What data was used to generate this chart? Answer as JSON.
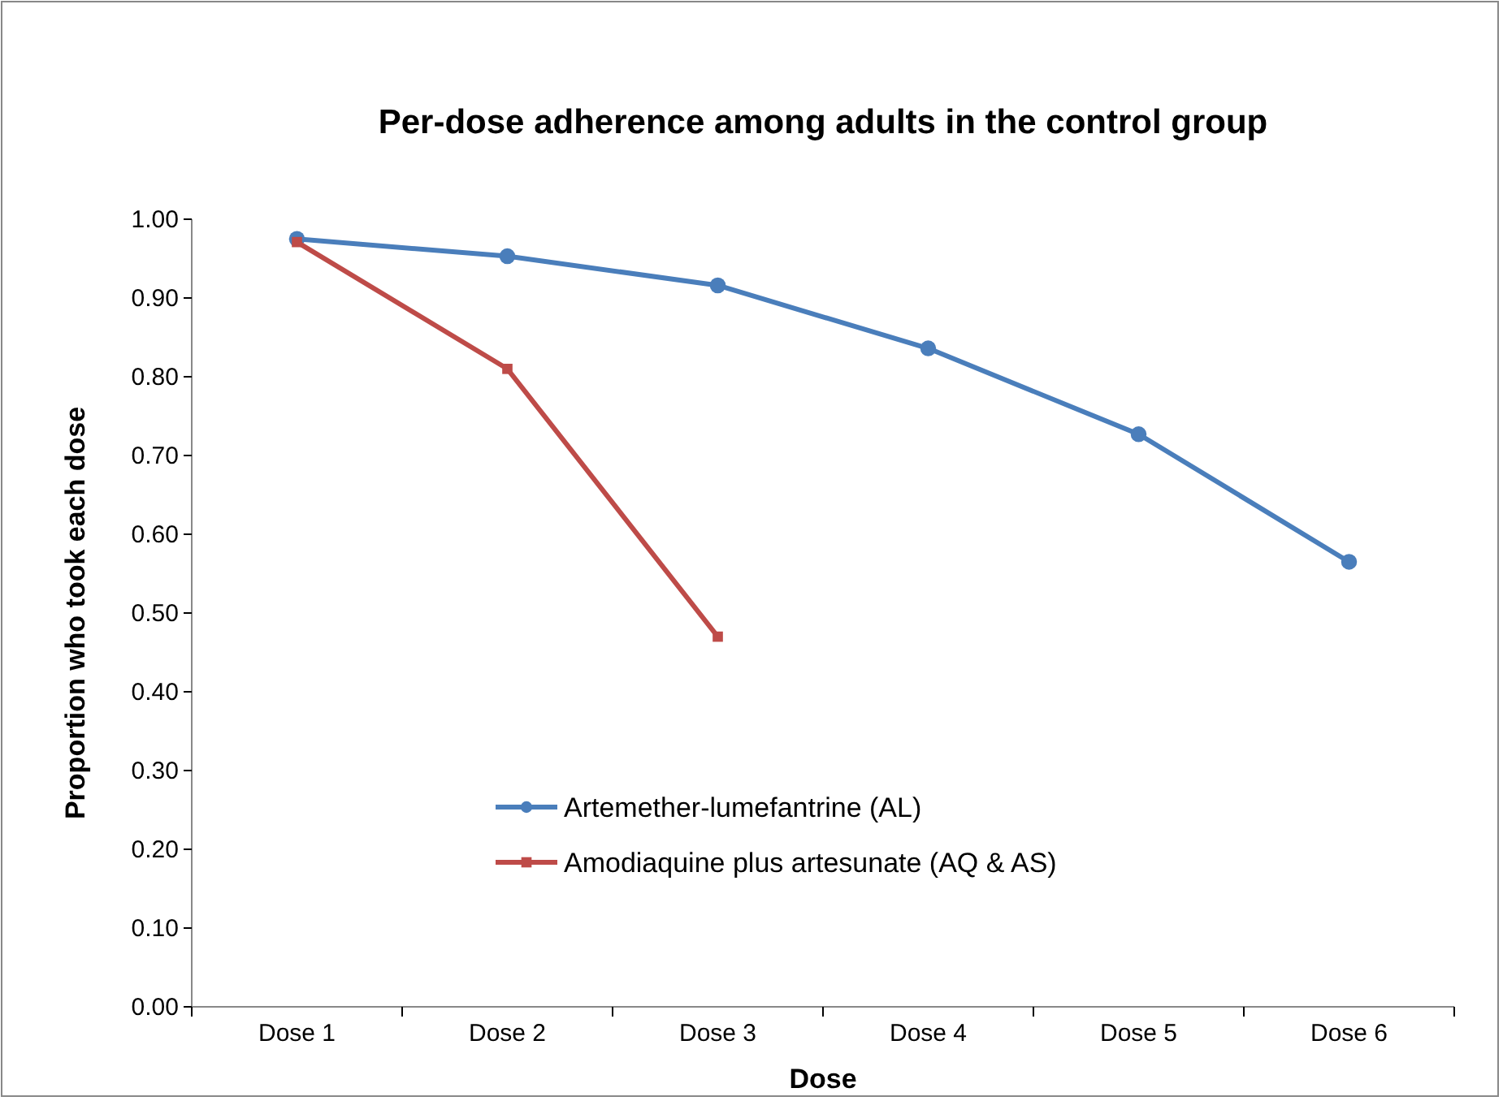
{
  "chart_data": {
    "type": "line",
    "title": "Per-dose adherence among adults in the control group",
    "xlabel": "Dose",
    "ylabel": "Proportion who took each dose",
    "categories": [
      "Dose 1",
      "Dose 2",
      "Dose 3",
      "Dose 4",
      "Dose 5",
      "Dose 6"
    ],
    "series": [
      {
        "name": "Artemether-lumefantrine (AL)",
        "color": "#4a7ebb",
        "marker": "circle",
        "values": [
          0.975,
          0.953,
          0.916,
          0.836,
          0.727,
          0.565
        ]
      },
      {
        "name": "Amodiaquine plus artesunate (AQ & AS)",
        "color": "#be4b48",
        "marker": "square",
        "values": [
          0.971,
          0.81,
          0.47,
          null,
          null,
          null
        ]
      }
    ],
    "ylim": [
      0,
      1
    ],
    "yticks": [
      {
        "value": 0,
        "label": "0.00"
      },
      {
        "value": 0.1,
        "label": "0.10"
      },
      {
        "value": 0.2,
        "label": "0.20"
      },
      {
        "value": 0.3,
        "label": "0.30"
      },
      {
        "value": 0.4,
        "label": "0.40"
      },
      {
        "value": 0.5,
        "label": "0.50"
      },
      {
        "value": 0.6,
        "label": "0.60"
      },
      {
        "value": 0.7,
        "label": "0.70"
      },
      {
        "value": 0.8,
        "label": "0.80"
      },
      {
        "value": 0.9,
        "label": "0.90"
      },
      {
        "value": 1,
        "label": "1.00"
      }
    ],
    "grid": false,
    "legend": "bottom",
    "line_style": "solid"
  }
}
